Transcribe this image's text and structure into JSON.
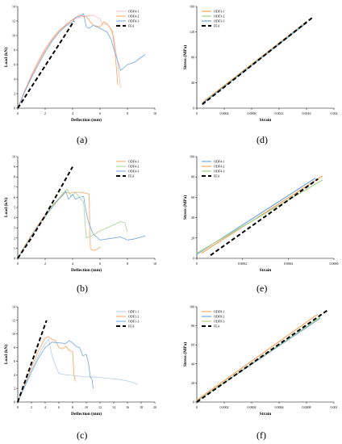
{
  "panels": [
    {
      "id": "a",
      "panel_label": "(a)",
      "chart_data": {
        "type": "line",
        "xlabel": "Deflection (mm)",
        "ylabel": "Load (kN)",
        "xlim": [
          0,
          10
        ],
        "ylim": [
          0,
          14
        ],
        "xticks": [
          "0",
          "2",
          "4",
          "6",
          "8",
          "10"
        ],
        "yticks": [
          "0",
          "2",
          "4",
          "6",
          "8",
          "10",
          "12",
          "14"
        ],
        "legend_position": "top-right",
        "series": [
          {
            "name": "ODF4-1",
            "color": "#ffb6c1",
            "dash": "",
            "width": 0.8,
            "x": [
              0,
              0.5,
              1,
              1.5,
              2,
              2.5,
              3,
              3.5,
              4,
              4.5,
              5,
              5.5,
              6,
              6.2,
              6.5,
              6.8,
              7,
              7.3,
              7.5
            ],
            "y": [
              0,
              2.4,
              4.6,
              6.5,
              8.2,
              9.6,
              10.7,
              11.5,
              12.2,
              12.5,
              12.7,
              12.8,
              12.3,
              11.5,
              11.7,
              10.8,
              9.8,
              6.0,
              2.8
            ]
          },
          {
            "name": "ODF4-2",
            "color": "#f7a35c",
            "dash": "",
            "width": 0.8,
            "x": [
              0,
              0.5,
              1,
              1.5,
              2,
              2.5,
              3,
              3.5,
              4,
              4.5,
              5,
              5.5,
              6,
              6.3,
              6.6,
              6.9,
              7.1,
              7.3
            ],
            "y": [
              0,
              2.3,
              4.4,
              6.3,
              8.0,
              9.4,
              10.6,
              11.4,
              12.2,
              12.8,
              12.6,
              11.4,
              11.2,
              11.9,
              11.4,
              10.6,
              7.6,
              3.2
            ]
          },
          {
            "name": "ODF4-3",
            "color": "#6fa8dc",
            "dash": "",
            "width": 0.8,
            "x": [
              0,
              0.5,
              1,
              1.5,
              2,
              2.5,
              3,
              3.5,
              4,
              4.2,
              4.5,
              4.8,
              5,
              5.2,
              5.5,
              6,
              6.5,
              6.8,
              7,
              7.3,
              7.5,
              8,
              8.5,
              9,
              9.3
            ],
            "y": [
              0,
              2.2,
              4.2,
              6.0,
              7.7,
              9.2,
              10.4,
              11.3,
              11.9,
              12.5,
              12.6,
              13.0,
              11.2,
              11.0,
              11.4,
              11.0,
              10.5,
              9.5,
              8.2,
              6.4,
              5.2,
              6.0,
              6.3,
              7.0,
              7.4
            ]
          },
          {
            "name": "FEA",
            "color": "#000000",
            "dash": "5,3",
            "width": 2,
            "x": [
              0,
              3.6,
              3.9,
              4.1
            ],
            "y": [
              0,
              10.5,
              11.4,
              12.0
            ]
          }
        ]
      }
    },
    {
      "id": "d",
      "panel_label": "(d)",
      "chart_data": {
        "type": "line",
        "xlabel": "Strain",
        "ylabel": "Stress (MPa)",
        "xlim": [
          0,
          0.002
        ],
        "ylim": [
          0,
          160
        ],
        "xticks": [
          "0",
          "0.0004",
          "0.0008",
          "0.0012",
          "0.0016",
          "0.002"
        ],
        "yticks": [
          "0",
          "40",
          "80",
          "120",
          "160"
        ],
        "legend_position": "top-left",
        "series": [
          {
            "name": "ODF3-1",
            "color": "#f7a35c",
            "dash": "",
            "width": 1.2,
            "x": [
              8e-05,
              0.0016
            ],
            "y": [
              9,
              136
            ]
          },
          {
            "name": "ODF3-2",
            "color": "#a9d18e",
            "dash": "",
            "width": 1.2,
            "x": [
              8e-05,
              0.0016
            ],
            "y": [
              8,
              135
            ]
          },
          {
            "name": "ODF3-3",
            "color": "#6fa8dc",
            "dash": "",
            "width": 1.2,
            "x": [
              8e-05,
              0.0016
            ],
            "y": [
              7,
              134
            ]
          },
          {
            "name": "FEA",
            "color": "#000000",
            "dash": "5,3",
            "width": 2,
            "x": [
              8e-05,
              0.00168
            ],
            "y": [
              6,
              142
            ]
          }
        ]
      }
    },
    {
      "id": "b",
      "panel_label": "(b)",
      "chart_data": {
        "type": "line",
        "xlabel": "Deflection (mm)",
        "ylabel": "Load (kN)",
        "xlim": [
          0,
          10
        ],
        "ylim": [
          0,
          10
        ],
        "xticks": [
          "0",
          "2",
          "4",
          "6",
          "8",
          "10"
        ],
        "yticks": [
          "0",
          "1",
          "2",
          "3",
          "4",
          "5",
          "6",
          "7",
          "8",
          "9",
          "10"
        ],
        "legend_position": "top-right",
        "series": [
          {
            "name": "ODF4-1",
            "color": "#f7a35c",
            "dash": "",
            "width": 0.8,
            "x": [
              0,
              0.5,
              1,
              1.5,
              2,
              2.5,
              3,
              3.3,
              3.5,
              3.8,
              4,
              4.5,
              5,
              5.2,
              5.3,
              5.4,
              5.6,
              5.8,
              6
            ],
            "y": [
              0,
              1.2,
              2.3,
              3.3,
              4.3,
              5.2,
              5.9,
              6.3,
              6.5,
              6.4,
              6.5,
              6.5,
              6.4,
              6.3,
              1.0,
              0.8,
              0.8,
              0.9,
              1.1
            ]
          },
          {
            "name": "ODF4-2",
            "color": "#a9d18e",
            "dash": "",
            "width": 0.8,
            "x": [
              0,
              0.5,
              1,
              1.5,
              2,
              2.5,
              3,
              3.3,
              3.6,
              3.9,
              4.2,
              4.5,
              4.8,
              5,
              5.5,
              6,
              6.5,
              7,
              7.5,
              7.8,
              8
            ],
            "y": [
              0,
              1.1,
              2.2,
              3.2,
              4.2,
              5.1,
              5.9,
              6.4,
              6.8,
              6.1,
              6.5,
              6.0,
              5.5,
              2.0,
              2.3,
              2.7,
              3.0,
              3.3,
              3.6,
              3.5,
              2.6
            ]
          },
          {
            "name": "ODF4-3",
            "color": "#6fa8dc",
            "dash": "",
            "width": 0.8,
            "x": [
              0,
              0.5,
              1,
              1.5,
              2,
              2.5,
              3,
              3.3,
              3.5,
              3.7,
              4,
              4.2,
              4.5,
              4.8,
              5,
              5.2,
              5.5,
              6,
              6.5,
              7,
              7.5,
              8,
              8.5,
              9,
              9.3
            ],
            "y": [
              0,
              1.1,
              2.2,
              3.2,
              4.1,
              5.0,
              5.8,
              6.2,
              6.6,
              5.8,
              6.3,
              5.8,
              6.0,
              6.1,
              4.5,
              3.4,
              2.4,
              1.8,
              1.9,
              2.0,
              2.1,
              1.8,
              1.9,
              2.1,
              2.2
            ]
          },
          {
            "name": "FEA",
            "color": "#000000",
            "dash": "5,3",
            "width": 2,
            "x": [
              0,
              1,
              2,
              3,
              4
            ],
            "y": [
              0,
              2.0,
              4.2,
              6.6,
              9.0
            ]
          }
        ]
      }
    },
    {
      "id": "e",
      "panel_label": "(e)",
      "chart_data": {
        "type": "line",
        "xlabel": "Strain",
        "ylabel": "Stress (MPa)",
        "xlim": [
          0,
          0.0006
        ],
        "ylim": [
          0,
          100
        ],
        "xticks": [
          "0",
          "0.0002",
          "0.0004",
          "0.0006"
        ],
        "yticks": [
          "0",
          "20",
          "40",
          "60",
          "80",
          "100"
        ],
        "legend_position": "top-left",
        "series": [
          {
            "name": "ODF4-1",
            "color": "#6fa8dc",
            "dash": "",
            "width": 1.2,
            "x": [
              0,
              0.00052
            ],
            "y": [
              4,
              79
            ]
          },
          {
            "name": "ODF4-2",
            "color": "#f7a35c",
            "dash": "",
            "width": 1.2,
            "x": [
              2e-05,
              0.00055
            ],
            "y": [
              5,
              81
            ]
          },
          {
            "name": "ODF4-3",
            "color": "#a9d18e",
            "dash": "",
            "width": 1.2,
            "x": [
              0,
              0.00055
            ],
            "y": [
              5,
              77
            ]
          },
          {
            "name": "FEA",
            "color": "#000000",
            "dash": "5,3",
            "width": 2,
            "x": [
              6e-05,
              0.00053
            ],
            "y": [
              3,
              78
            ]
          }
        ]
      }
    },
    {
      "id": "c",
      "panel_label": "(c)",
      "chart_data": {
        "type": "line",
        "xlabel": "Deflection (mm)",
        "ylabel": "Load (kN)",
        "xlim": [
          0,
          20
        ],
        "ylim": [
          0,
          14
        ],
        "xticks": [
          "0",
          "2",
          "4",
          "6",
          "8",
          "10",
          "12",
          "14",
          "16",
          "18",
          "20"
        ],
        "yticks": [
          "0",
          "2",
          "4",
          "6",
          "8",
          "10",
          "12",
          "14"
        ],
        "legend_position": "top-right",
        "series": [
          {
            "name": "ODF1-1",
            "color": "#b8cce4",
            "dash": "",
            "width": 0.8,
            "x": [
              0,
              1,
              2,
              3,
              3.5,
              4,
              4.5,
              5,
              5.5,
              6,
              7,
              8,
              9,
              10,
              11,
              12,
              13,
              14,
              15,
              16,
              17,
              17.5
            ],
            "y": [
              0,
              2.4,
              4.7,
              6.8,
              7.8,
              8.6,
              9.3,
              6.8,
              5.4,
              4.2,
              4.0,
              3.9,
              3.8,
              3.7,
              3.7,
              3.6,
              3.5,
              3.4,
              3.3,
              3.1,
              2.8,
              2.6
            ]
          },
          {
            "name": "ODF1-2",
            "color": "#f7a35c",
            "dash": "",
            "width": 0.8,
            "x": [
              0,
              1,
              2,
              3,
              4,
              4.5,
              5,
              5.5,
              6,
              6.5,
              7,
              7.5,
              8,
              8.2,
              8.4
            ],
            "y": [
              0,
              2.6,
              5.1,
              7.5,
              9.4,
              9.6,
              9.2,
              9.0,
              8.0,
              7.8,
              8.2,
              7.6,
              7.4,
              4.0,
              3.0
            ]
          },
          {
            "name": "ODF1-3",
            "color": "#6fa8dc",
            "dash": "",
            "width": 0.8,
            "x": [
              0,
              1,
              2,
              3,
              4,
              4.5,
              5,
              6,
              7,
              7.5,
              8,
              8.5,
              9,
              9.5,
              10,
              10.3,
              10.6,
              10.8,
              11
            ],
            "y": [
              0,
              2.2,
              4.4,
              6.4,
              8.0,
              8.4,
              8.8,
              8.7,
              8.6,
              9.0,
              8.7,
              8.2,
              8.0,
              6.8,
              7.0,
              5.8,
              3.6,
              3.5,
              2.0
            ]
          },
          {
            "name": "FEA",
            "color": "#000000",
            "dash": "5,3",
            "width": 2,
            "x": [
              0,
              4.2
            ],
            "y": [
              0,
              12.0
            ]
          }
        ]
      }
    },
    {
      "id": "f",
      "panel_label": "(f)",
      "chart_data": {
        "type": "line",
        "xlabel": "Strain",
        "ylabel": "Stress (MPa)",
        "xlim": [
          0,
          0.001
        ],
        "ylim": [
          0,
          100
        ],
        "xticks": [
          "0",
          "0.0002",
          "0.0004",
          "0.0006",
          "0.0008",
          "0.001"
        ],
        "yticks": [
          "0",
          "20",
          "40",
          "60",
          "80",
          "100"
        ],
        "legend_position": "top-left",
        "series": [
          {
            "name": "ODF8-1",
            "color": "#f7a35c",
            "dash": "",
            "width": 1.2,
            "x": [
              0,
              0.00088
            ],
            "y": [
              2,
              92
            ]
          },
          {
            "name": "ODF8-2",
            "color": "#6fa8dc",
            "dash": "",
            "width": 1.2,
            "x": [
              0,
              0.0009
            ],
            "y": [
              1,
              88
            ]
          },
          {
            "name": "ODF8-3",
            "color": "#a9d18e",
            "dash": "",
            "width": 1.2,
            "x": [
              0,
              0.0009
            ],
            "y": [
              1,
              89
            ]
          },
          {
            "name": "FEA",
            "color": "#000000",
            "dash": "5,3",
            "width": 2,
            "x": [
              0,
              0.00095
            ],
            "y": [
              0,
              96
            ]
          }
        ]
      }
    }
  ]
}
